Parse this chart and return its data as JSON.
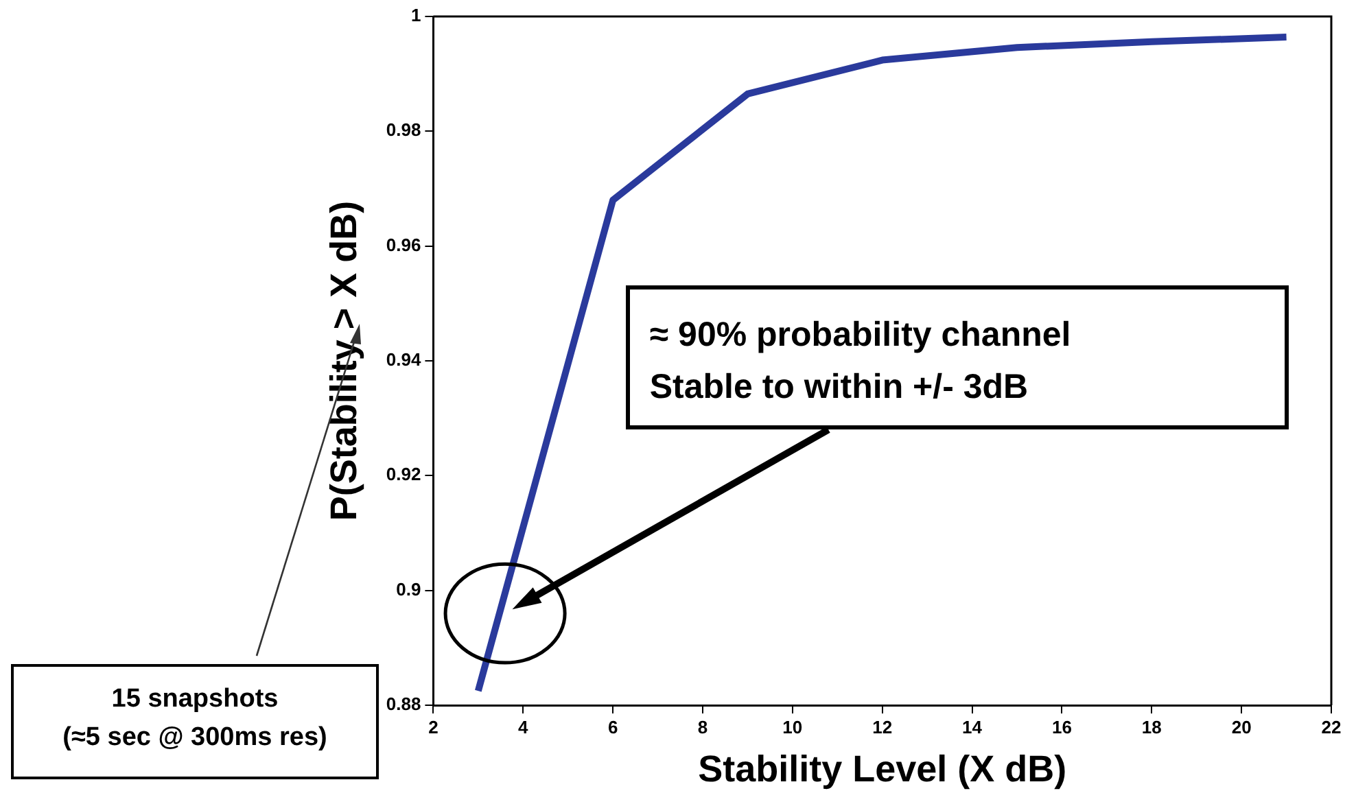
{
  "chart_data": {
    "type": "line",
    "xlabel": "Stability Level (X dB)",
    "ylabel": "P(Stability > X dB)",
    "x": [
      3,
      6,
      9,
      12,
      15,
      18,
      21
    ],
    "series": [
      {
        "color": "#2a3a9c",
        "values": [
          0.8825,
          0.968,
          0.9865,
          0.9924,
          0.9946,
          0.9956,
          0.9964
        ]
      }
    ],
    "xlim": [
      2,
      22
    ],
    "xticks": [
      2,
      4,
      6,
      8,
      10,
      12,
      14,
      16,
      18,
      20,
      22
    ],
    "ylim": [
      0.88,
      1
    ],
    "yticks": [
      0.88,
      0.9,
      0.92,
      0.94,
      0.96,
      0.98,
      1
    ],
    "grid": false,
    "legend": false,
    "marker": "none",
    "line_style": "solid",
    "annotations": [
      "≈ 90% probability channel\nStable to within +/- 3dB",
      "15 snapshots\n(≈5 sec @ 300ms res)"
    ]
  }
}
